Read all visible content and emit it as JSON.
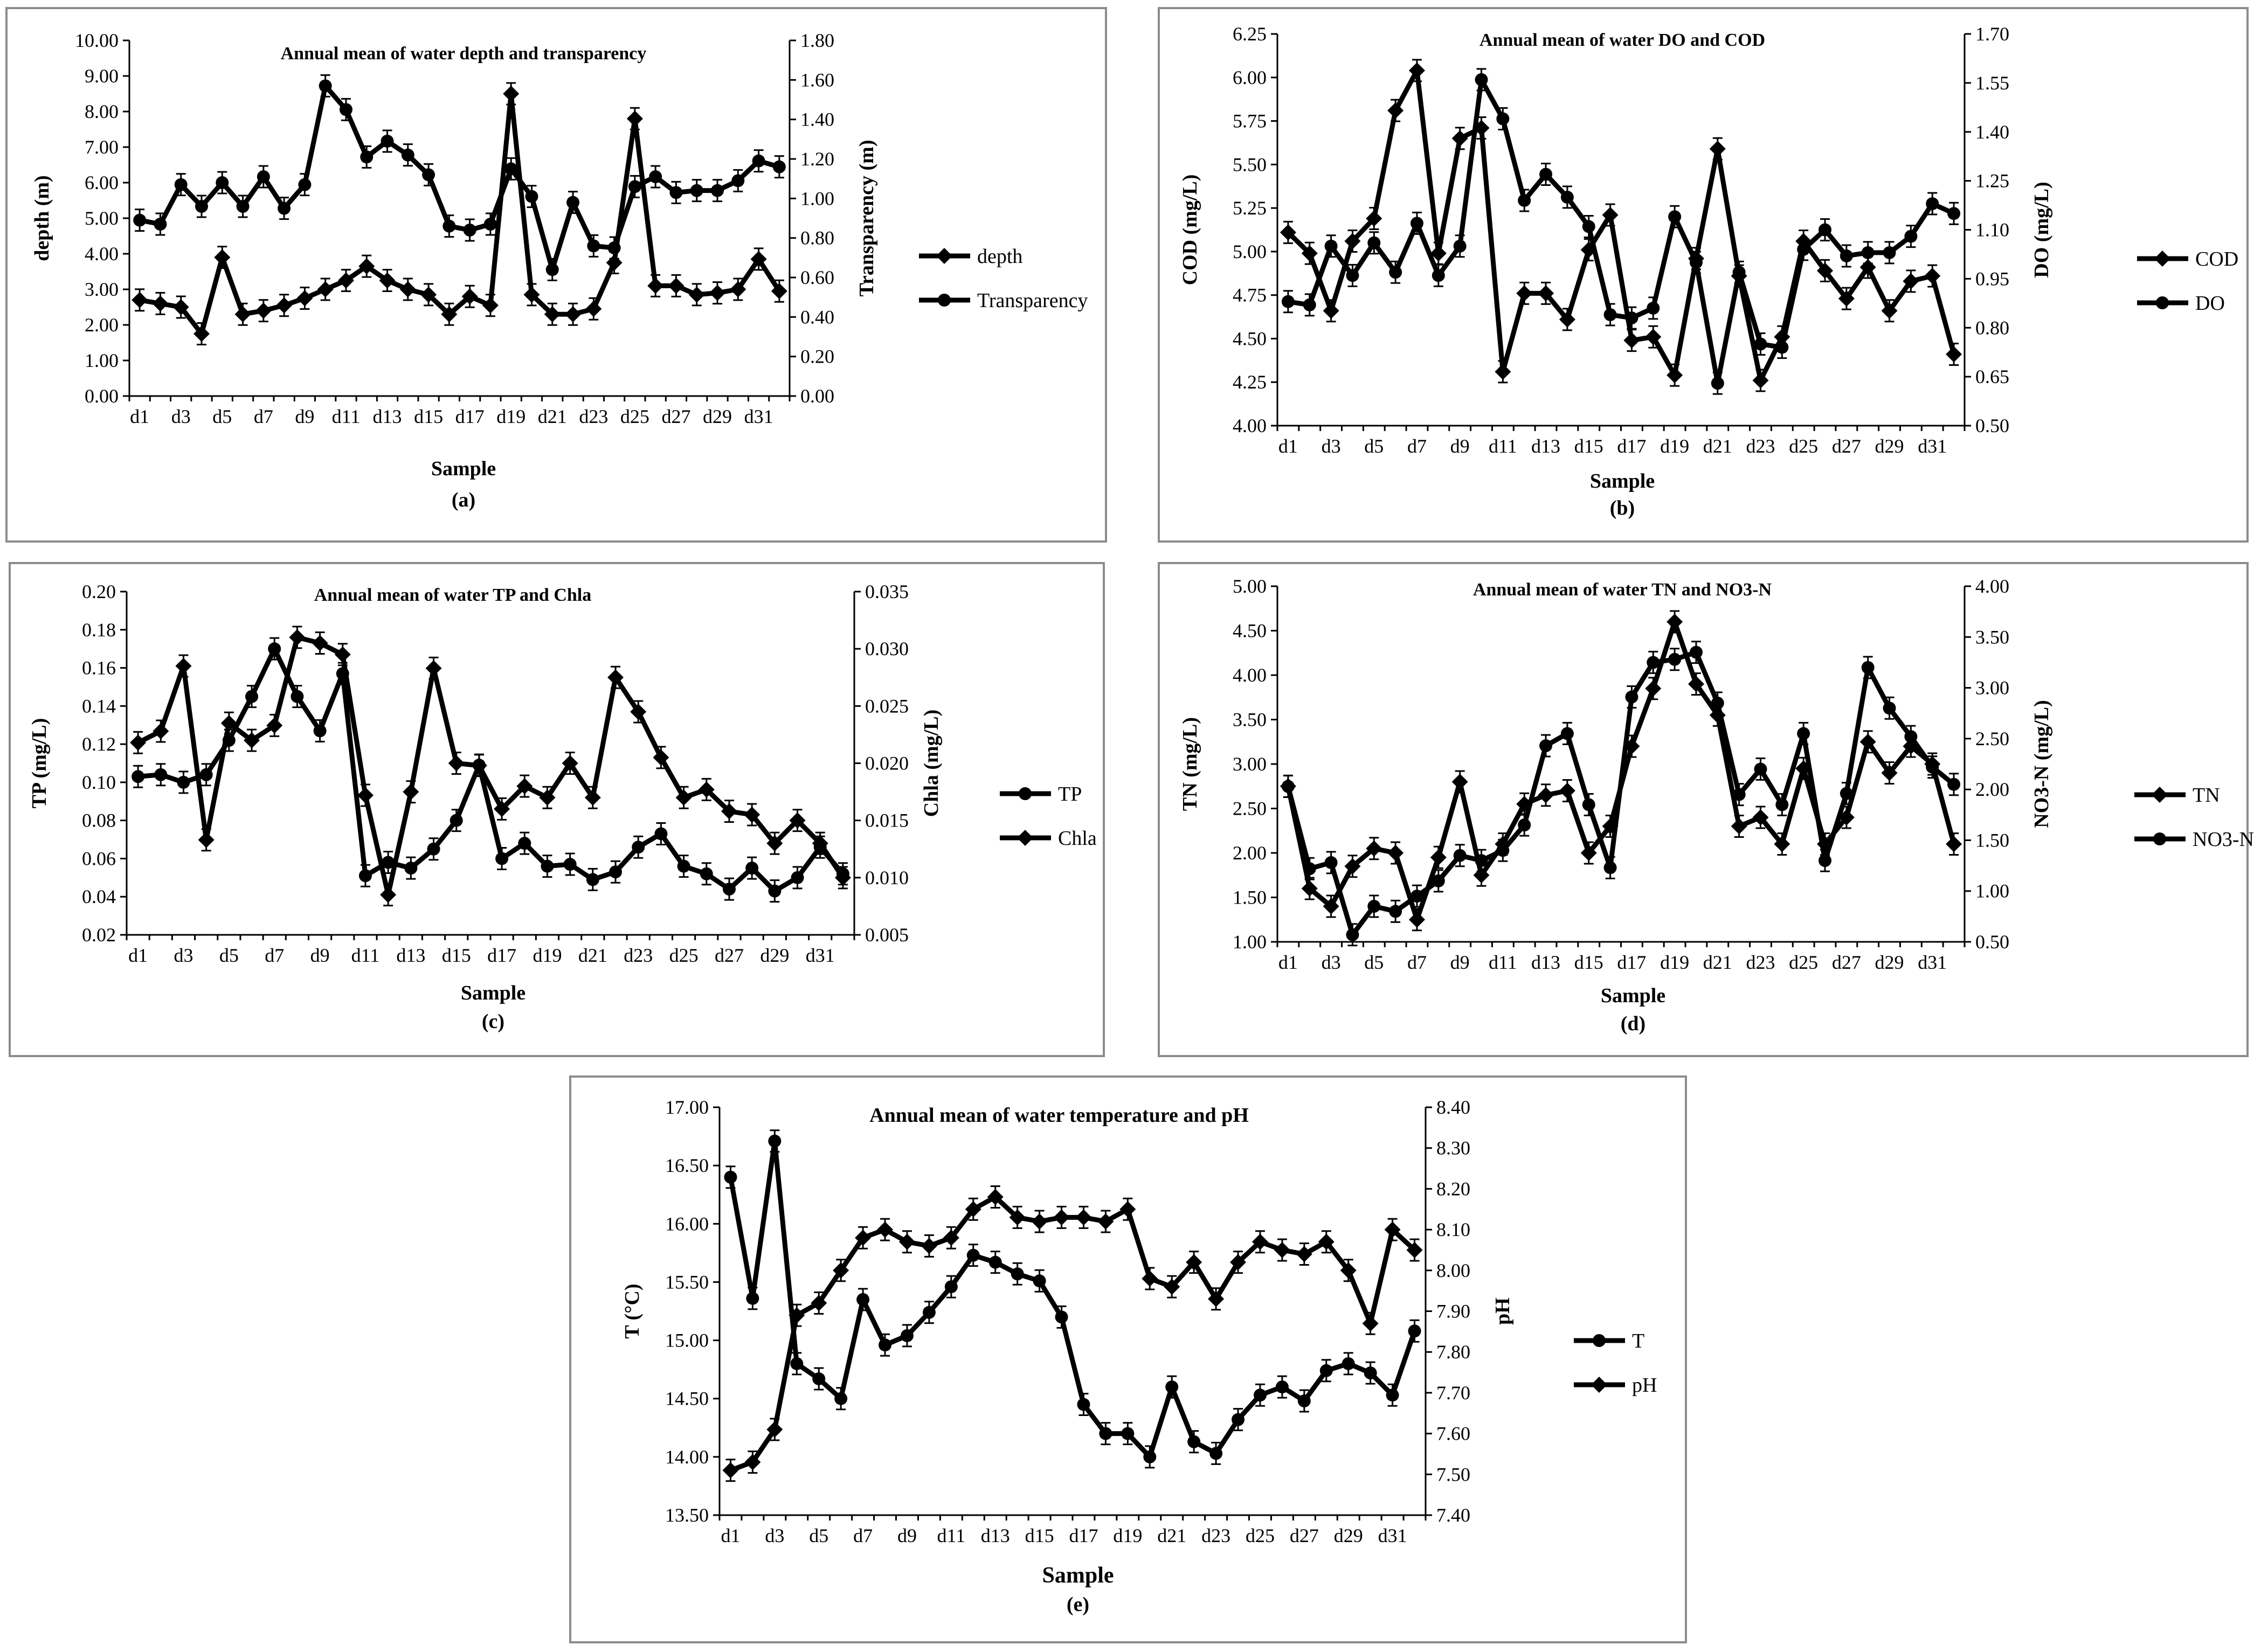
{
  "figure": {
    "panels": [
      {
        "id": "a",
        "title": "Annual mean of water depth and transparency",
        "xlabel": "Sample",
        "panel_label": "(a)"
      },
      {
        "id": "b",
        "title": "Annual mean of water DO and COD",
        "xlabel": "Sample",
        "panel_label": "(b)"
      },
      {
        "id": "c",
        "title": "Annual mean of water TP and Chla",
        "xlabel": "Sample",
        "panel_label": "(c)"
      },
      {
        "id": "d",
        "title": "Annual mean of water TN and NO3-N",
        "xlabel": "Sample",
        "panel_label": "(d)"
      },
      {
        "id": "e",
        "title": "Annual mean of water temperature and pH",
        "xlabel": "Sample",
        "panel_label": "(e)"
      }
    ]
  },
  "chart_data": [
    {
      "id": "a",
      "type": "line",
      "title": "Annual mean of water depth and transparency",
      "xlabel": "Sample",
      "ylabel": "depth (m)",
      "y2label": "Transparency (m)",
      "ylim": [
        0,
        10
      ],
      "y2lim": [
        0,
        1.8
      ],
      "ytick_step": 1,
      "y2tick_step": 0.2,
      "ytick_decimals": 2,
      "y2tick_decimals": 2,
      "categories": [
        "d1",
        "d2",
        "d3",
        "d4",
        "d5",
        "d6",
        "d7",
        "d8",
        "d9",
        "d10",
        "d11",
        "d12",
        "d13",
        "d14",
        "d15",
        "d16",
        "d17",
        "d18",
        "d19",
        "d20",
        "d21",
        "d22",
        "d23",
        "d24",
        "d25",
        "d26",
        "d27",
        "d28",
        "d29",
        "d30",
        "d31",
        "d32"
      ],
      "xtick_labels": [
        "d1",
        "d3",
        "d5",
        "d7",
        "d9",
        "d11",
        "d13",
        "d15",
        "d17",
        "d19",
        "d21",
        "d23",
        "d25",
        "d27",
        "d29",
        "d31"
      ],
      "legend": [
        "depth",
        "Transparency"
      ],
      "legend_position": "right",
      "series": [
        {
          "name": "depth",
          "axis": "left",
          "marker": "diamond",
          "values": [
            2.7,
            2.6,
            2.5,
            1.75,
            3.9,
            2.3,
            2.4,
            2.55,
            2.75,
            3.0,
            3.25,
            3.65,
            3.25,
            3.0,
            2.85,
            2.3,
            2.8,
            2.55,
            8.5,
            2.85,
            2.3,
            2.3,
            2.45,
            3.75,
            7.8,
            3.1,
            3.1,
            2.85,
            2.9,
            3.0,
            3.85,
            2.95
          ]
        },
        {
          "name": "Transparency",
          "axis": "right",
          "marker": "circle",
          "values": [
            0.89,
            0.87,
            1.07,
            0.96,
            1.08,
            0.96,
            1.11,
            0.95,
            1.07,
            1.57,
            1.45,
            1.21,
            1.29,
            1.22,
            1.12,
            0.86,
            0.84,
            0.87,
            1.15,
            1.01,
            0.64,
            0.98,
            0.76,
            0.75,
            1.06,
            1.11,
            1.03,
            1.04,
            1.04,
            1.09,
            1.19,
            1.16
          ]
        }
      ]
    },
    {
      "id": "b",
      "type": "line",
      "title": "Annual mean of water DO and COD",
      "xlabel": "Sample",
      "ylabel": "COD (mg/L)",
      "y2label": "DO (mg/L)",
      "ylim": [
        4.0,
        6.25
      ],
      "y2lim": [
        0.5,
        1.7
      ],
      "ytick_step": 0.25,
      "y2tick_step": 0.15,
      "ytick_decimals": 2,
      "y2tick_decimals": 2,
      "categories": [
        "d1",
        "d2",
        "d3",
        "d4",
        "d5",
        "d6",
        "d7",
        "d8",
        "d9",
        "d10",
        "d11",
        "d12",
        "d13",
        "d14",
        "d15",
        "d16",
        "d17",
        "d18",
        "d19",
        "d20",
        "d21",
        "d22",
        "d23",
        "d24",
        "d25",
        "d26",
        "d27",
        "d28",
        "d29",
        "d30",
        "d31",
        "d32"
      ],
      "xtick_labels": [
        "d1",
        "d3",
        "d5",
        "d7",
        "d9",
        "d11",
        "d13",
        "d15",
        "d17",
        "d19",
        "d21",
        "d23",
        "d25",
        "d27",
        "d29",
        "d31"
      ],
      "legend": [
        "COD",
        "DO"
      ],
      "legend_position": "right",
      "series": [
        {
          "name": "COD",
          "axis": "left",
          "marker": "diamond",
          "values": [
            5.11,
            4.99,
            4.66,
            5.06,
            5.19,
            5.81,
            6.04,
            4.99,
            5.65,
            5.71,
            4.31,
            4.76,
            4.76,
            4.61,
            5.01,
            5.21,
            4.49,
            4.51,
            4.29,
            4.96,
            5.59,
            4.86,
            4.26,
            4.51,
            5.06,
            4.89,
            4.73,
            4.91,
            4.66,
            4.83,
            4.86,
            4.41
          ]
        },
        {
          "name": "DO",
          "axis": "right",
          "marker": "circle",
          "values": [
            0.88,
            0.87,
            1.05,
            0.96,
            1.06,
            0.97,
            1.12,
            0.96,
            1.05,
            1.56,
            1.44,
            1.19,
            1.27,
            1.2,
            1.11,
            0.84,
            0.83,
            0.86,
            1.14,
            1.0,
            0.63,
            0.97,
            0.75,
            0.74,
            1.04,
            1.1,
            1.02,
            1.03,
            1.03,
            1.08,
            1.18,
            1.15
          ]
        }
      ]
    },
    {
      "id": "c",
      "type": "line",
      "title": "Annual mean of water TP and Chla",
      "xlabel": "Sample",
      "ylabel": "TP (mg/L)",
      "y2label": "Chla (mg/L)",
      "ylim": [
        0.02,
        0.2
      ],
      "y2lim": [
        0.005,
        0.035
      ],
      "ytick_step": 0.02,
      "y2tick_step": 0.005,
      "ytick_decimals": 2,
      "y2tick_decimals": 3,
      "categories": [
        "d1",
        "d2",
        "d3",
        "d4",
        "d5",
        "d6",
        "d7",
        "d8",
        "d9",
        "d10",
        "d11",
        "d12",
        "d13",
        "d14",
        "d15",
        "d16",
        "d17",
        "d18",
        "d19",
        "d20",
        "d21",
        "d22",
        "d23",
        "d24",
        "d25",
        "d26",
        "d27",
        "d28",
        "d29",
        "d30",
        "d31",
        "d32"
      ],
      "xtick_labels": [
        "d1",
        "d3",
        "d5",
        "d7",
        "d9",
        "d11",
        "d13",
        "d15",
        "d17",
        "d19",
        "d21",
        "d23",
        "d25",
        "d27",
        "d29",
        "d31"
      ],
      "legend": [
        "TP",
        "Chla"
      ],
      "legend_position": "right",
      "series": [
        {
          "name": "TP",
          "axis": "left",
          "marker": "circle",
          "values": [
            0.103,
            0.104,
            0.1,
            0.104,
            0.122,
            0.145,
            0.17,
            0.145,
            0.127,
            0.157,
            0.051,
            0.058,
            0.055,
            0.065,
            0.08,
            0.109,
            0.06,
            0.068,
            0.056,
            0.057,
            0.049,
            0.053,
            0.066,
            0.073,
            0.056,
            0.052,
            0.044,
            0.055,
            0.043,
            0.05,
            0.066,
            0.052
          ]
        },
        {
          "name": "Chla",
          "axis": "right",
          "marker": "diamond",
          "values": [
            0.0218,
            0.0228,
            0.0285,
            0.0133,
            0.0235,
            0.022,
            0.0233,
            0.031,
            0.0305,
            0.0295,
            0.0172,
            0.0085,
            0.0175,
            0.0283,
            0.02,
            0.0198,
            0.016,
            0.018,
            0.017,
            0.02,
            0.017,
            0.0275,
            0.0245,
            0.0205,
            0.017,
            0.0177,
            0.0158,
            0.0155,
            0.013,
            0.015,
            0.013,
            0.01
          ]
        }
      ]
    },
    {
      "id": "d",
      "type": "line",
      "title": "Annual mean of water TN and NO3-N",
      "xlabel": "Sample",
      "ylabel": "TN (mg/L)",
      "y2label": "NO3-N (mg/L)",
      "ylim": [
        1.0,
        5.0
      ],
      "y2lim": [
        0.5,
        4.0
      ],
      "ytick_step": 0.5,
      "y2tick_step": 0.5,
      "ytick_decimals": 2,
      "y2tick_decimals": 2,
      "categories": [
        "d1",
        "d2",
        "d3",
        "d4",
        "d5",
        "d6",
        "d7",
        "d8",
        "d9",
        "d10",
        "d11",
        "d12",
        "d13",
        "d14",
        "d15",
        "d16",
        "d17",
        "d18",
        "d19",
        "d20",
        "d21",
        "d22",
        "d23",
        "d24",
        "d25",
        "d26",
        "d27",
        "d28",
        "d29",
        "d30",
        "d31",
        "d32"
      ],
      "xtick_labels": [
        "d1",
        "d3",
        "d5",
        "d7",
        "d9",
        "d11",
        "d13",
        "d15",
        "d17",
        "d19",
        "d21",
        "d23",
        "d25",
        "d27",
        "d29",
        "d31"
      ],
      "legend": [
        "TN",
        "NO3-N"
      ],
      "legend_position": "right",
      "series": [
        {
          "name": "TN",
          "axis": "left",
          "marker": "diamond",
          "values": [
            2.75,
            1.6,
            1.4,
            1.85,
            2.05,
            2.0,
            1.25,
            1.95,
            2.8,
            1.75,
            2.1,
            2.55,
            2.65,
            2.7,
            2.0,
            2.3,
            3.2,
            3.85,
            4.6,
            3.9,
            3.55,
            2.3,
            2.4,
            2.1,
            2.95,
            2.1,
            2.4,
            3.25,
            2.9,
            3.2,
            3.0,
            2.1
          ]
        },
        {
          "name": "NO3-N",
          "axis": "right",
          "marker": "circle",
          "values": [
            2.03,
            1.22,
            1.28,
            0.57,
            0.85,
            0.8,
            0.95,
            1.1,
            1.35,
            1.3,
            1.4,
            1.65,
            2.43,
            2.55,
            1.85,
            1.23,
            2.91,
            3.25,
            3.28,
            3.35,
            2.85,
            1.95,
            2.2,
            1.85,
            2.55,
            1.3,
            1.96,
            3.2,
            2.8,
            2.52,
            2.22,
            2.05
          ]
        }
      ]
    },
    {
      "id": "e",
      "type": "line",
      "title": "Annual mean of water temperature and pH",
      "xlabel": "Sample",
      "ylabel": "T (°C)",
      "y2label": "pH",
      "ylim": [
        13.5,
        17.0
      ],
      "y2lim": [
        7.4,
        8.4
      ],
      "ytick_step": 0.5,
      "y2tick_step": 0.1,
      "ytick_decimals": 2,
      "y2tick_decimals": 2,
      "categories": [
        "d1",
        "d2",
        "d3",
        "d4",
        "d5",
        "d6",
        "d7",
        "d8",
        "d9",
        "d10",
        "d11",
        "d12",
        "d13",
        "d14",
        "d15",
        "d16",
        "d17",
        "d18",
        "d19",
        "d20",
        "d21",
        "d22",
        "d23",
        "d24",
        "d25",
        "d26",
        "d27",
        "d28",
        "d29",
        "d30",
        "d31",
        "d32"
      ],
      "xtick_labels": [
        "d1",
        "d3",
        "d5",
        "d7",
        "d9",
        "d11",
        "d13",
        "d15",
        "d17",
        "d19",
        "d21",
        "d23",
        "d25",
        "d27",
        "d29",
        "d31"
      ],
      "legend": [
        "T",
        "pH"
      ],
      "legend_position": "right",
      "series": [
        {
          "name": "T",
          "axis": "left",
          "marker": "circle",
          "values": [
            16.4,
            15.36,
            16.71,
            14.8,
            14.67,
            14.5,
            15.35,
            14.96,
            15.04,
            15.24,
            15.46,
            15.73,
            15.67,
            15.57,
            15.51,
            15.2,
            14.45,
            14.2,
            14.2,
            14.0,
            14.6,
            14.13,
            14.03,
            14.32,
            14.53,
            14.6,
            14.48,
            14.74,
            14.8,
            14.72,
            14.53,
            15.08
          ]
        },
        {
          "name": "pH",
          "axis": "right",
          "marker": "diamond",
          "values": [
            7.51,
            7.53,
            7.61,
            7.89,
            7.92,
            8.0,
            8.08,
            8.1,
            8.07,
            8.06,
            8.08,
            8.15,
            8.18,
            8.13,
            8.12,
            8.13,
            8.13,
            8.12,
            8.15,
            7.98,
            7.96,
            8.02,
            7.93,
            8.02,
            8.07,
            8.05,
            8.04,
            8.07,
            8.0,
            7.87,
            8.1,
            8.05
          ]
        }
      ]
    }
  ]
}
